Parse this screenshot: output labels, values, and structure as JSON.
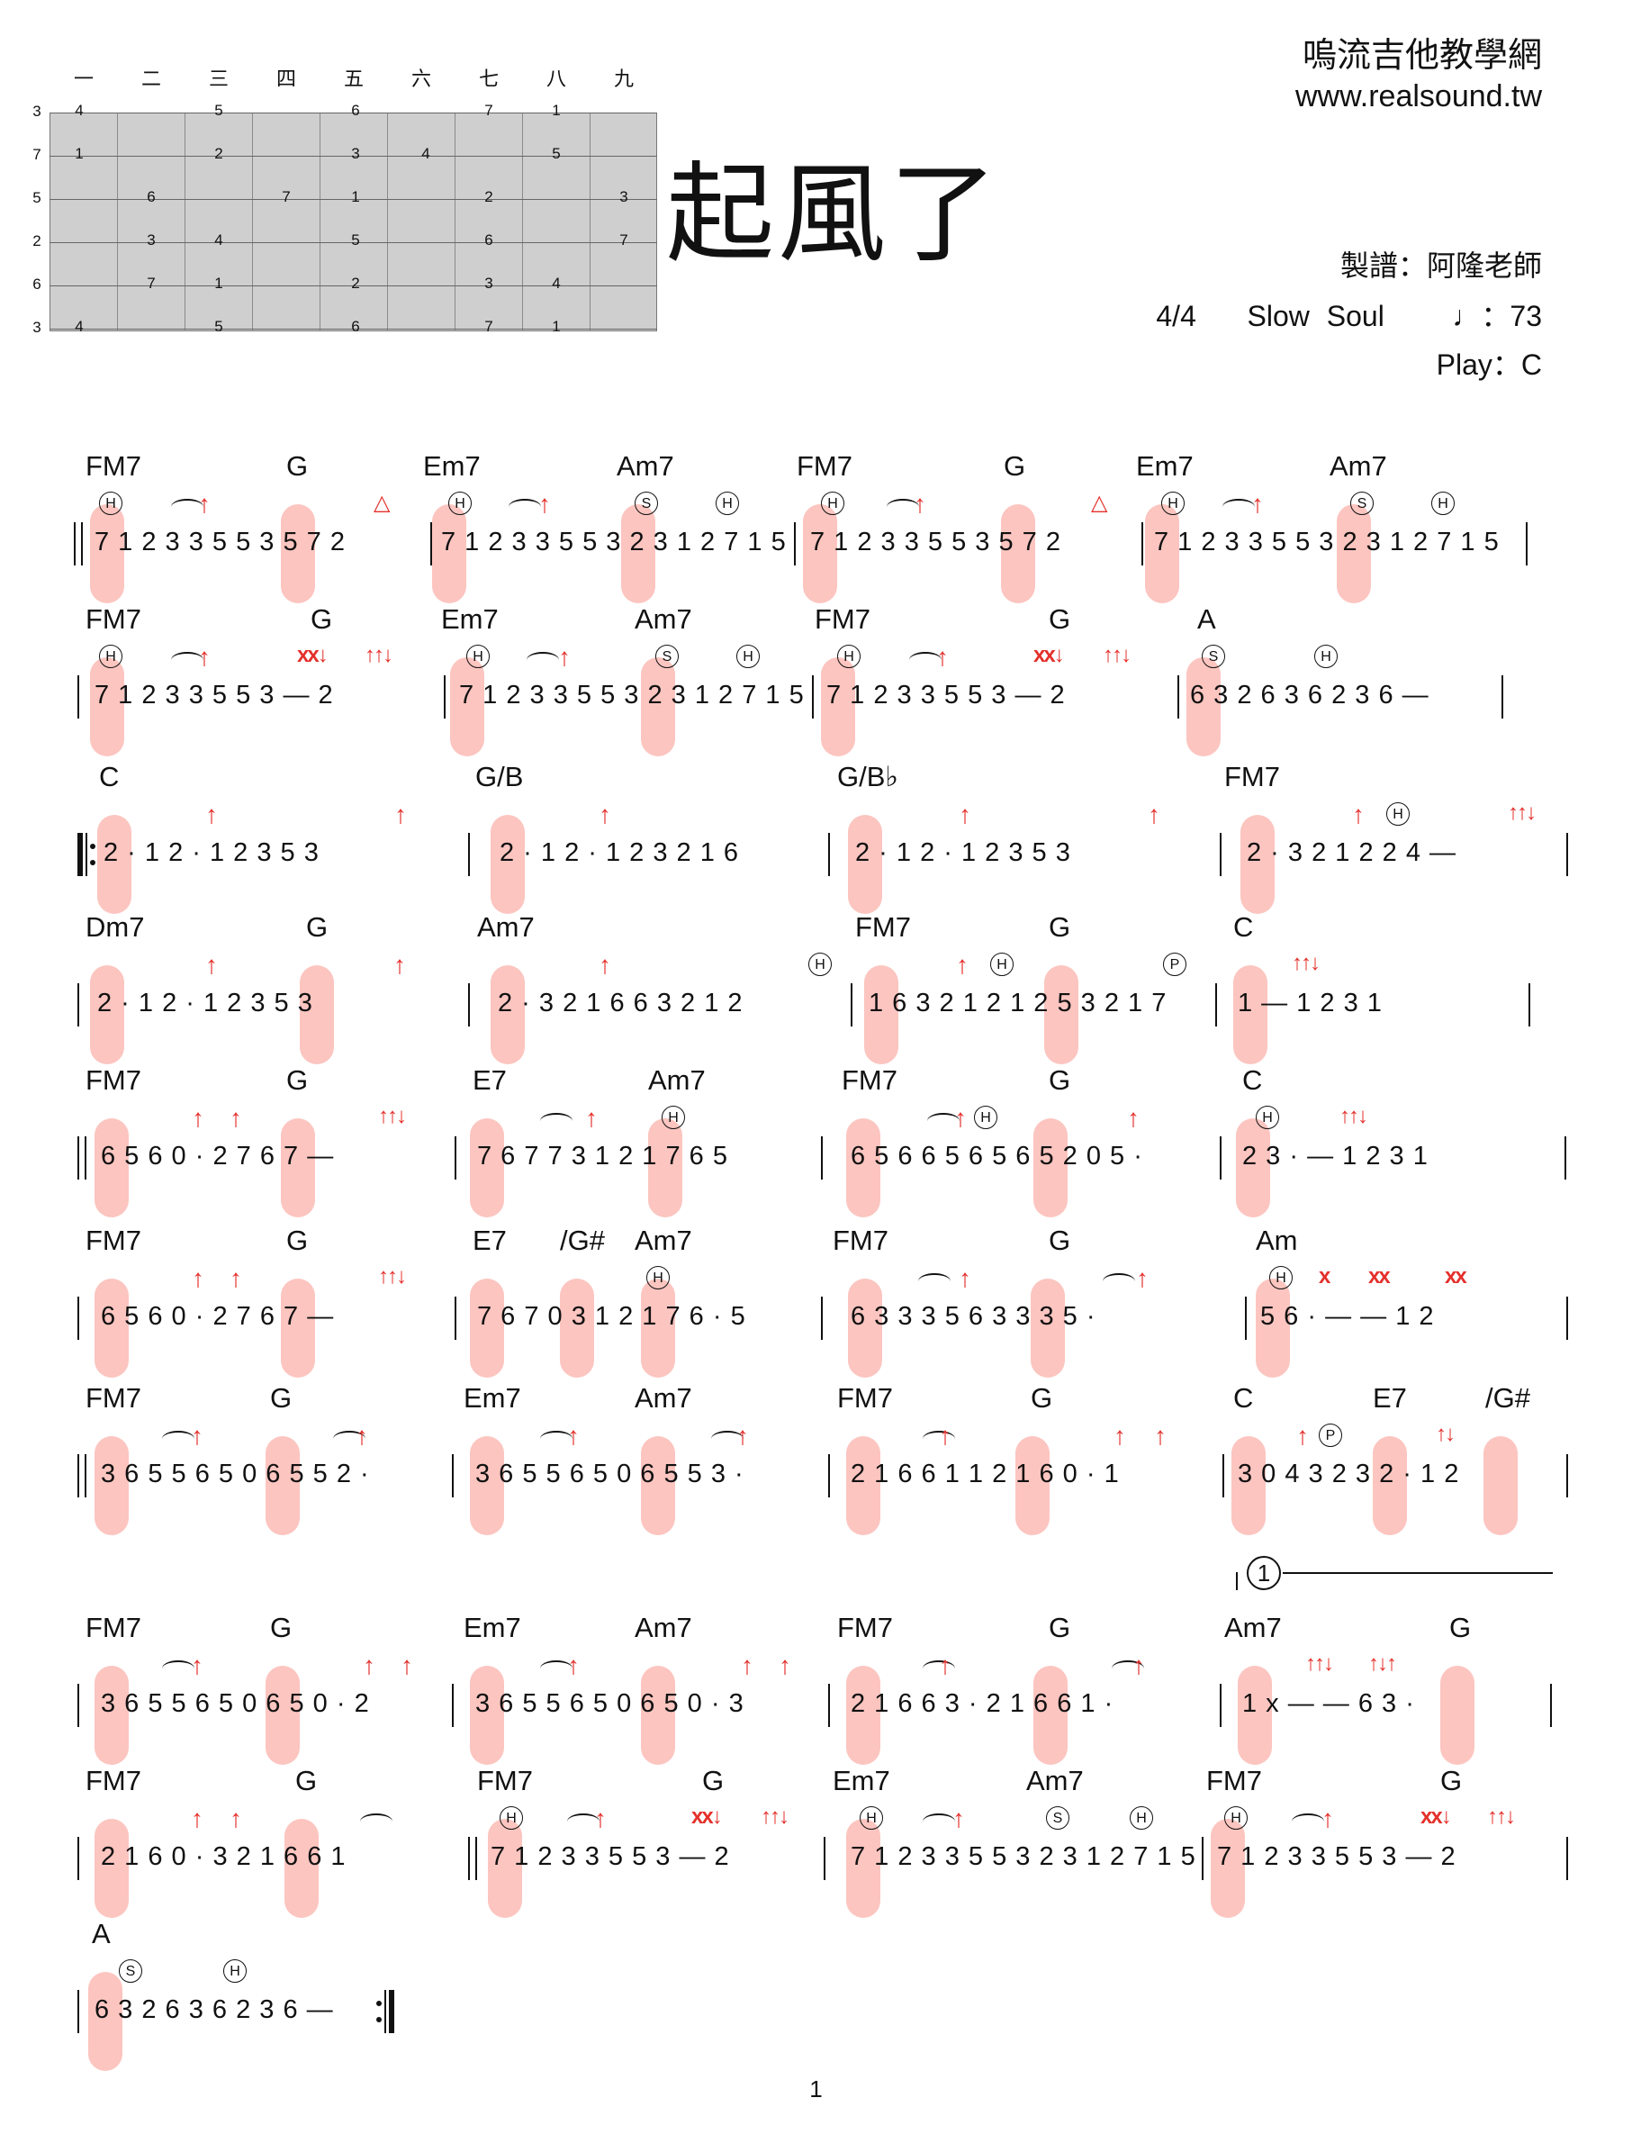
{
  "header": {
    "site_name": "嗚流吉他教學網",
    "site_url": "www.realsound.tw",
    "title": "起風了",
    "arranger": "製譜：阿隆老師",
    "time_signature": "4/4",
    "style": "Slow Soul",
    "tempo": "♩：73",
    "play_key": "Play：C"
  },
  "fretboard": {
    "frets": [
      "一",
      "二",
      "三",
      "四",
      "五",
      "六",
      "七",
      "八",
      "九"
    ],
    "strings": [
      "3",
      "7",
      "5",
      "2",
      "6",
      "3"
    ]
  },
  "rows": [
    {
      "chords": [
        "FM7",
        "G",
        "Em7",
        "Am7",
        "FM7",
        "G",
        "Em7",
        "Am7"
      ],
      "measures": [
        "7 1 2 3   3 5 5 3   5  7   2",
        "7 1 2 3   3 5 5 3   2 3 1 2   7 1 5",
        "7 1 2 3   3 5 5 3   5  7   2",
        "7 1 2 3   3 5 5 3   2 3 1 2   7 1 5"
      ]
    },
    {
      "chords": [
        "FM7",
        "G",
        "Em7",
        "Am7",
        "FM7",
        "G",
        "A"
      ],
      "measures": [
        "7 1 2 3   3 5 5 3   —   2",
        "7 1 2 3   3 5 5 3   2 3 1 2   7 1 5",
        "7 1 2 3   3 5 5 3   —   2",
        "6 3 2 6   3 6 2 3   6   —"
      ]
    },
    {
      "chords": [
        "C",
        "G/B",
        "G/B♭",
        "FM7"
      ],
      "measures": [
        "2 · 1   2 · 1   2 3   5 3",
        "2 · 1   2 · 1   2 3 2 1   6",
        "2 · 1   2 · 1   2 3   5 3",
        "2 · 3   2 1 2   2 4   —"
      ]
    },
    {
      "chords": [
        "Dm7",
        "G",
        "Am7",
        "FM7",
        "G",
        "C"
      ],
      "measures": [
        "2 · 1   2 · 1   2 3   5 3",
        "2 · 3   2 1   6 6   3 2 1 2",
        "1 6   3 2 1 2   1 2 5   3 2 1 7",
        "1   —   1 2   3 1"
      ]
    },
    {
      "chords": [
        "FM7",
        "G",
        "E7",
        "Am7",
        "FM7",
        "G",
        "C"
      ],
      "measures": [
        "6 5 6   0 · 2   7 6 7   —",
        "7 6 7   7 3   1 2 1 7   6 5",
        "6 5 6   6 5 6 5   6 5 2   0 5 ·",
        "2 3 ·   —   1 2   3 1"
      ]
    },
    {
      "chords": [
        "FM7",
        "G",
        "E7",
        "/G#",
        "Am7",
        "FM7",
        "G",
        "Am"
      ],
      "measures": [
        "6 5 6   0 · 2   7 6 7   —",
        "7 6 7   0 3   1 2 1 7   6 · 5",
        "6 3 3   3 5   6 3 3   3 5 ·",
        "5 6 ·   —   —   1 2"
      ]
    },
    {
      "chords": [
        "FM7",
        "G",
        "Em7",
        "Am7",
        "FM7",
        "G",
        "C",
        "E7",
        "/G#"
      ],
      "measures": [
        "3 6 5   5 6 5   0 6 5   5 2 ·",
        "3 6 5   5 6 5   0 6 5   5 3 ·",
        "2 1 6   6 1 1   2 1 6   0 · 1",
        "3   0 4 3 2   3 2 ·   1 2"
      ]
    },
    {
      "chords": [
        "FM7",
        "G",
        "Em7",
        "Am7",
        "FM7",
        "G",
        "Am7",
        "G"
      ],
      "measures": [
        "3 6 5   5 6 5   0 6 5   0 · 2",
        "3 6 5   5 6 5   0 6 5   0 · 3",
        "2 1 6   6 3 ·   2 1 6   6 1 ·",
        "1 x   —   —   6 3 ·"
      ]
    },
    {
      "chords": [
        "FM7",
        "G",
        "FM7",
        "G",
        "Em7",
        "Am7",
        "FM7",
        "G"
      ],
      "measures": [
        "2 1 6   0 · 3   2 1 6   6 1",
        "7 1 2 3   3 5 5 3   —   2",
        "7 1 2 3   3 5 5 3   2 3 1 2   7 1 5",
        "7 1 2 3   3 5 5 3   —   2"
      ]
    },
    {
      "chords": [
        "A"
      ],
      "measures": [
        "6 3 2 6   3 6 2 3   6   —"
      ]
    }
  ],
  "volta": "1",
  "page_number": "1",
  "colors": {
    "accent": "#e4302b",
    "highlight": "#f8a59b",
    "fretboard": "#cfcfcf"
  }
}
